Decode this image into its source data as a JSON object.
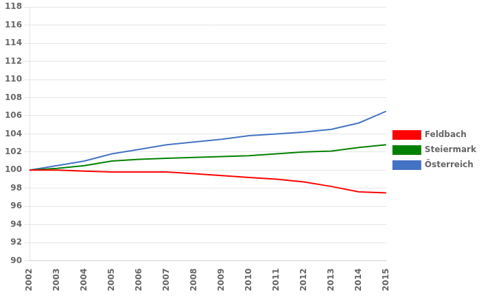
{
  "chart_data": {
    "type": "line",
    "x": [
      2002,
      2003,
      2004,
      2005,
      2006,
      2007,
      2008,
      2009,
      2010,
      2011,
      2012,
      2013,
      2014,
      2015
    ],
    "series": [
      {
        "name": "Feldbach",
        "color": "#FF0000",
        "values": [
          100.0,
          100.0,
          99.9,
          99.8,
          99.8,
          99.8,
          99.6,
          99.4,
          99.2,
          99.0,
          98.7,
          98.2,
          97.6,
          97.5
        ]
      },
      {
        "name": "Steiermark",
        "color": "#008000",
        "values": [
          100.0,
          100.2,
          100.5,
          101.0,
          101.2,
          101.3,
          101.4,
          101.5,
          101.6,
          101.8,
          102.0,
          102.1,
          102.5,
          102.8
        ]
      },
      {
        "name": "Österreich",
        "color": "#4472C4",
        "values": [
          100.0,
          100.5,
          101.0,
          101.8,
          102.3,
          102.8,
          103.1,
          103.4,
          103.8,
          104.0,
          104.2,
          104.5,
          105.2,
          106.5
        ]
      }
    ],
    "xlim": [
      2002,
      2015
    ],
    "xticks": [
      2002,
      2003,
      2004,
      2005,
      2006,
      2007,
      2008,
      2009,
      2010,
      2011,
      2012,
      2013,
      2014,
      2015
    ],
    "ylim": [
      90,
      118
    ],
    "yticks": [
      90,
      92,
      94,
      96,
      98,
      100,
      102,
      104,
      106,
      108,
      110,
      112,
      114,
      116,
      118
    ],
    "grid": "y",
    "legend": "right"
  }
}
